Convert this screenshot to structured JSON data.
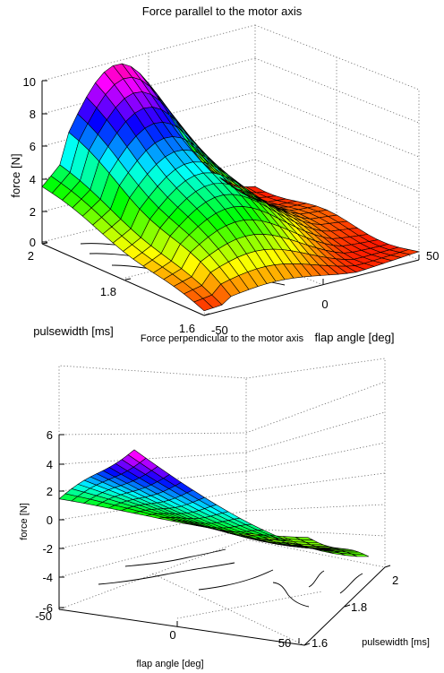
{
  "chart_data": [
    {
      "type": "surface",
      "title": "Force parallel to the motor axis",
      "xlabel": "flap angle [deg]",
      "ylabel": "pulsewidth [ms]",
      "zlabel": "force [N]",
      "x_ticks": [
        "-50",
        "0",
        "50"
      ],
      "y_ticks": [
        "1.6",
        "1.8",
        "2"
      ],
      "z_ticks": [
        "0",
        "2",
        "4",
        "6",
        "8",
        "10"
      ],
      "xlim": [
        -50,
        50
      ],
      "ylim": [
        1.6,
        2.0
      ],
      "zlim": [
        0,
        10
      ],
      "grid": true,
      "colormap": "hsv",
      "description_values": {
        "peak_force": 9.5,
        "peak_at": {
          "flap_angle": -50,
          "pulsewidth": 2.0
        },
        "min_force": 0.2
      }
    },
    {
      "type": "surface",
      "title": "Force perpendicular to the motor axis",
      "xlabel": "flap angle [deg]",
      "ylabel": "pulsewidth [ms]",
      "zlabel": "force [N]",
      "x_ticks": [
        "-50",
        "0",
        "50"
      ],
      "y_ticks": [
        "1.6",
        "1.8",
        "2"
      ],
      "z_ticks": [
        "-6",
        "-4",
        "-2",
        "0",
        "2",
        "4",
        "6"
      ],
      "xlim": [
        -50,
        50
      ],
      "ylim": [
        1.6,
        2.0
      ],
      "zlim": [
        -6,
        7
      ],
      "grid": true,
      "colormap": "hsv",
      "description_values": {
        "peak_force": 6.8,
        "peak_at": {
          "flap_angle": -50,
          "pulsewidth": 2.0
        },
        "min_force": -0.9
      }
    }
  ]
}
